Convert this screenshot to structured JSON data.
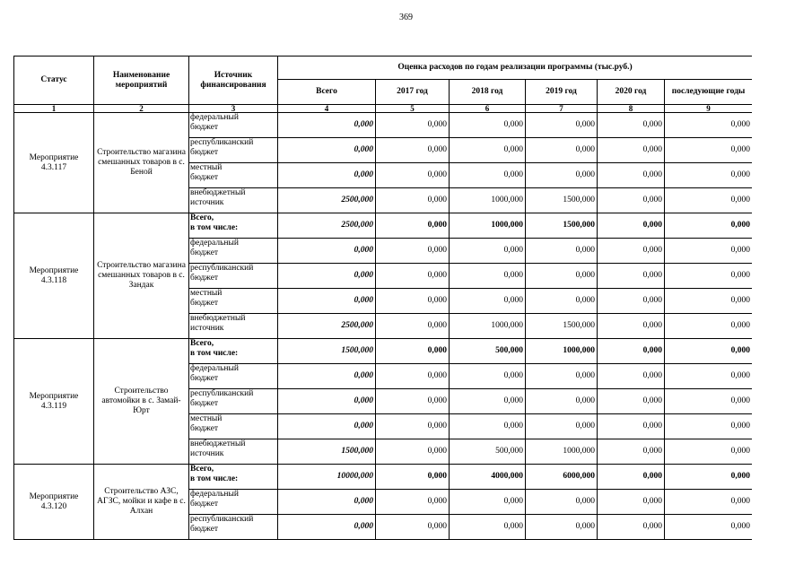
{
  "page_number": "369",
  "table": {
    "header": {
      "status": "Статус",
      "name": "Наименование мероприятий",
      "source": "Источник финансирования",
      "estimate": "Оценка расходов по годам реализации  программы (тыс.руб.)",
      "columns": [
        "Всего",
        "2017 год",
        "2018 год",
        "2019 год",
        "2020 год",
        "последующие годы"
      ]
    },
    "column_numbers": [
      "1",
      "2",
      "3",
      "4",
      "5",
      "6",
      "7",
      "8",
      "9"
    ],
    "groups": [
      {
        "status": "Мероприятие 4.3.117",
        "name": "Строительство магазина смешанных товаров в с. Беной",
        "rows": [
          {
            "source": "федеральный\nбюджет",
            "values": [
              "0,000",
              "0,000",
              "0,000",
              "0,000",
              "0,000",
              "0,000"
            ]
          },
          {
            "source": "республиканский\nбюджет",
            "values": [
              "0,000",
              "0,000",
              "0,000",
              "0,000",
              "0,000",
              "0,000"
            ]
          },
          {
            "source": "местный\nбюджет",
            "values": [
              "0,000",
              "0,000",
              "0,000",
              "0,000",
              "0,000",
              "0,000"
            ]
          },
          {
            "source": "внебюджетный\nисточник",
            "values": [
              "2500,000",
              "0,000",
              "1000,000",
              "1500,000",
              "0,000",
              "0,000"
            ]
          }
        ]
      },
      {
        "status": "Мероприятие 4.3.118",
        "name": "Строительство магазина смешанных товаров в с. Зандак",
        "total": {
          "source": "Всего,\nв том числе:",
          "values": [
            "2500,000",
            "0,000",
            "1000,000",
            "1500,000",
            "0,000",
            "0,000"
          ]
        },
        "rows": [
          {
            "source": "федеральный\nбюджет",
            "values": [
              "0,000",
              "0,000",
              "0,000",
              "0,000",
              "0,000",
              "0,000"
            ]
          },
          {
            "source": "республиканский\nбюджет",
            "values": [
              "0,000",
              "0,000",
              "0,000",
              "0,000",
              "0,000",
              "0,000"
            ]
          },
          {
            "source": "местный\nбюджет",
            "values": [
              "0,000",
              "0,000",
              "0,000",
              "0,000",
              "0,000",
              "0,000"
            ]
          },
          {
            "source": "внебюджетный\nисточник",
            "values": [
              "2500,000",
              "0,000",
              "1000,000",
              "1500,000",
              "0,000",
              "0,000"
            ]
          }
        ]
      },
      {
        "status": "Мероприятие 4.3.119",
        "name": "Строительство автомойки в с. Замай-Юрт",
        "total": {
          "source": "Всего,\nв том числе:",
          "values": [
            "1500,000",
            "0,000",
            "500,000",
            "1000,000",
            "0,000",
            "0,000"
          ]
        },
        "rows": [
          {
            "source": "федеральный\nбюджет",
            "values": [
              "0,000",
              "0,000",
              "0,000",
              "0,000",
              "0,000",
              "0,000"
            ]
          },
          {
            "source": "республиканский\nбюджет",
            "values": [
              "0,000",
              "0,000",
              "0,000",
              "0,000",
              "0,000",
              "0,000"
            ]
          },
          {
            "source": "местный\nбюджет",
            "values": [
              "0,000",
              "0,000",
              "0,000",
              "0,000",
              "0,000",
              "0,000"
            ]
          },
          {
            "source": "внебюджетный\nисточник",
            "values": [
              "1500,000",
              "0,000",
              "500,000",
              "1000,000",
              "0,000",
              "0,000"
            ]
          }
        ]
      },
      {
        "status": "Мероприятие 4.3.120",
        "name": "Строительство АЗС, АГЗС, мойки и кафе в с. Алхан",
        "total": {
          "source": "Всего,\nв том числе:",
          "values": [
            "10000,000",
            "0,000",
            "4000,000",
            "6000,000",
            "0,000",
            "0,000"
          ]
        },
        "rows": [
          {
            "source": "федеральный\nбюджет",
            "values": [
              "0,000",
              "0,000",
              "0,000",
              "0,000",
              "0,000",
              "0,000"
            ]
          },
          {
            "source": "республиканский\nбюджет",
            "values": [
              "0,000",
              "0,000",
              "0,000",
              "0,000",
              "0,000",
              "0,000"
            ]
          }
        ]
      }
    ]
  }
}
